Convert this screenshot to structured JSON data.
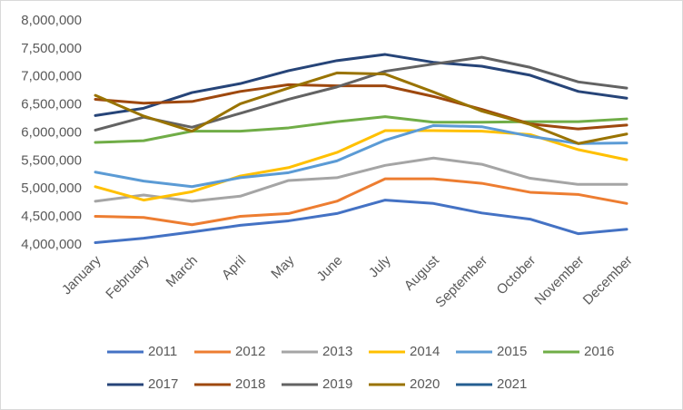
{
  "chart_data": {
    "type": "line",
    "categories": [
      "January",
      "February",
      "March",
      "April",
      "May",
      "June",
      "July",
      "August",
      "September",
      "October",
      "November",
      "December"
    ],
    "ylim": [
      4000000,
      8000000
    ],
    "yticks": [
      {
        "value": 4000000,
        "label": "4,000,000"
      },
      {
        "value": 4500000,
        "label": "4,500,000"
      },
      {
        "value": 5000000,
        "label": "5,000,000"
      },
      {
        "value": 5500000,
        "label": "5,500,000"
      },
      {
        "value": 6000000,
        "label": "6,000,000"
      },
      {
        "value": 6500000,
        "label": "6,500,000"
      },
      {
        "value": 7000000,
        "label": "7,000,000"
      },
      {
        "value": 7500000,
        "label": "7,500,000"
      },
      {
        "value": 8000000,
        "label": "8,000,000"
      }
    ],
    "grid": false,
    "legend": "bottom",
    "series": [
      {
        "name": "2011",
        "color": "#4472c4",
        "values": [
          4040000,
          4120000,
          4230000,
          4350000,
          4430000,
          4560000,
          4800000,
          4740000,
          4570000,
          4460000,
          4200000,
          4280000
        ]
      },
      {
        "name": "2012",
        "color": "#ed7d31",
        "values": [
          4510000,
          4490000,
          4360000,
          4510000,
          4560000,
          4780000,
          5180000,
          5180000,
          5100000,
          4940000,
          4900000,
          4740000
        ]
      },
      {
        "name": "2013",
        "color": "#a5a5a5",
        "values": [
          4780000,
          4890000,
          4780000,
          4870000,
          5150000,
          5200000,
          5420000,
          5550000,
          5440000,
          5190000,
          5080000,
          5080000
        ]
      },
      {
        "name": "2014",
        "color": "#ffc000",
        "values": [
          5040000,
          4800000,
          4950000,
          5230000,
          5380000,
          5650000,
          6040000,
          6040000,
          6030000,
          5970000,
          5700000,
          5520000
        ]
      },
      {
        "name": "2015",
        "color": "#5b9bd5",
        "values": [
          5300000,
          5140000,
          5040000,
          5200000,
          5290000,
          5500000,
          5870000,
          6130000,
          6110000,
          5940000,
          5810000,
          5820000
        ]
      },
      {
        "name": "2016",
        "color": "#70ad47",
        "values": [
          5830000,
          5860000,
          6030000,
          6030000,
          6090000,
          6200000,
          6290000,
          6190000,
          6190000,
          6200000,
          6200000,
          6250000
        ]
      },
      {
        "name": "2017",
        "color": "#264478",
        "values": [
          6310000,
          6440000,
          6720000,
          6880000,
          7110000,
          7290000,
          7400000,
          7260000,
          7190000,
          7030000,
          6740000,
          6620000
        ]
      },
      {
        "name": "2018",
        "color": "#9e480e",
        "values": [
          6600000,
          6530000,
          6560000,
          6740000,
          6860000,
          6840000,
          6840000,
          6650000,
          6420000,
          6160000,
          6070000,
          6140000
        ]
      },
      {
        "name": "2019",
        "color": "#636363",
        "values": [
          6050000,
          6280000,
          6100000,
          6350000,
          6600000,
          6820000,
          7100000,
          7230000,
          7350000,
          7170000,
          6910000,
          6800000
        ]
      },
      {
        "name": "2020",
        "color": "#997300",
        "values": [
          6670000,
          6300000,
          6030000,
          6520000,
          6800000,
          7070000,
          7050000,
          6730000,
          6390000,
          6150000,
          5810000,
          5980000
        ]
      },
      {
        "name": "2021",
        "color": "#255e91",
        "values": [
          null,
          null,
          null,
          null,
          null,
          null,
          null,
          null,
          null,
          null,
          null,
          null
        ]
      }
    ]
  }
}
